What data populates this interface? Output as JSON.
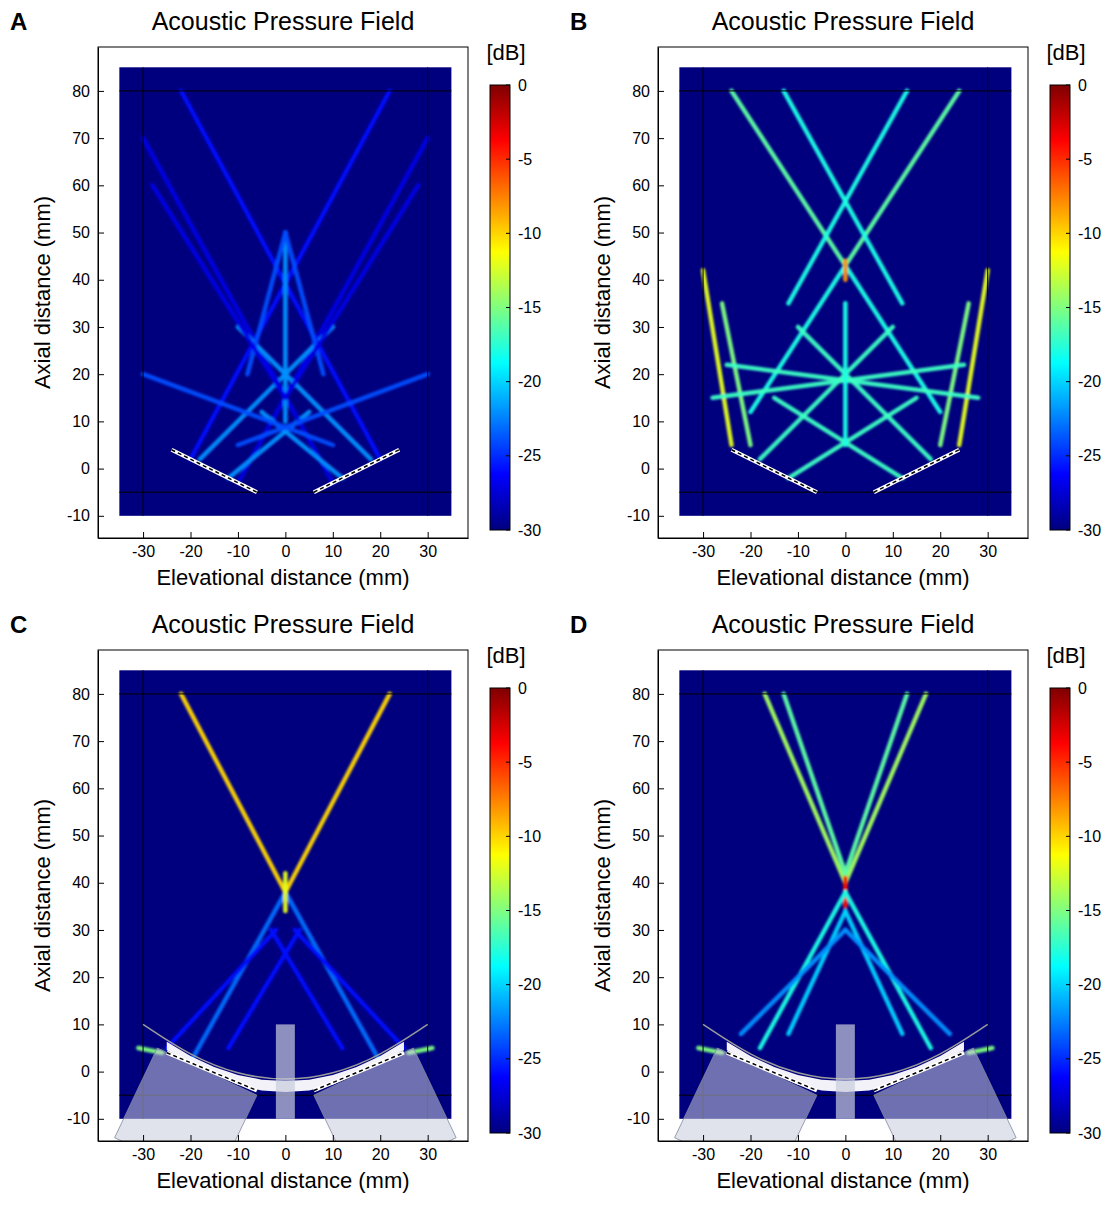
{
  "chart_data": [
    {
      "type": "heatmap",
      "panel": "A",
      "title": "Acoustic Pressure Field",
      "xlabel": "Elevational distance (mm)",
      "ylabel": "Axial distance (mm)",
      "xlim": [
        -39.5,
        38.5
      ],
      "ylim": [
        -14.7,
        89.3
      ],
      "xticks": [
        -30,
        -20,
        -10,
        0,
        10,
        20,
        30
      ],
      "yticks": [
        -10,
        0,
        10,
        20,
        30,
        40,
        50,
        60,
        70,
        80
      ],
      "colorbar": {
        "label": "[dB]",
        "range": [
          -30,
          0
        ],
        "ticks": [
          0,
          -5,
          -10,
          -15,
          -20,
          -25,
          -30
        ]
      },
      "field": {
        "x": [
          -35,
          35
        ],
        "y": [
          -10,
          85
        ]
      },
      "boundary": {
        "x": [
          -30,
          30
        ],
        "y": [
          -5,
          80
        ]
      },
      "beams": [
        {
          "x": [
            -20,
            22
          ],
          "y": [
            2,
            80
          ],
          "level": -26
        },
        {
          "x": [
            -10,
            30
          ],
          "y": [
            -3,
            70
          ],
          "level": -27
        },
        {
          "x": [
            -18,
            10
          ],
          "y": [
            2,
            30
          ],
          "level": -22
        },
        {
          "x": [
            -12,
            5
          ],
          "y": [
            -2,
            12
          ],
          "level": -22
        },
        {
          "x": [
            20,
            -22
          ],
          "y": [
            2,
            80
          ],
          "level": -26
        },
        {
          "x": [
            10,
            -30
          ],
          "y": [
            -3,
            70
          ],
          "level": -27
        },
        {
          "x": [
            18,
            -10
          ],
          "y": [
            2,
            30
          ],
          "level": -22
        },
        {
          "x": [
            12,
            -5
          ],
          "y": [
            -2,
            12
          ],
          "level": -22
        },
        {
          "x": [
            0,
            0
          ],
          "y": [
            10,
            50
          ],
          "level": -22
        },
        {
          "x": [
            -8,
            0
          ],
          "y": [
            20,
            50
          ],
          "level": -24
        },
        {
          "x": [
            8,
            0
          ],
          "y": [
            20,
            50
          ],
          "level": -24
        },
        {
          "x": [
            -30,
            10
          ],
          "y": [
            20,
            5
          ],
          "level": -24
        },
        {
          "x": [
            30,
            -10
          ],
          "y": [
            20,
            5
          ],
          "level": -24
        },
        {
          "x": [
            0,
            -28
          ],
          "y": [
            15,
            60
          ],
          "level": -27
        },
        {
          "x": [
            0,
            28
          ],
          "y": [
            15,
            60
          ],
          "level": -27
        }
      ],
      "transducers": [
        {
          "x": [
            -24,
            -6
          ],
          "y": [
            4,
            -5
          ]
        },
        {
          "x": [
            6,
            24
          ],
          "y": [
            -5,
            4
          ]
        }
      ]
    },
    {
      "type": "heatmap",
      "panel": "B",
      "title": "Acoustic Pressure Field",
      "xlabel": "Elevational distance (mm)",
      "ylabel": "Axial distance (mm)",
      "xlim": [
        -39.5,
        38.5
      ],
      "ylim": [
        -14.7,
        89.3
      ],
      "xticks": [
        -30,
        -20,
        -10,
        0,
        10,
        20,
        30
      ],
      "yticks": [
        -10,
        0,
        10,
        20,
        30,
        40,
        50,
        60,
        70,
        80
      ],
      "colorbar": {
        "label": "[dB]",
        "range": [
          -30,
          0
        ],
        "ticks": [
          0,
          -5,
          -10,
          -15,
          -20,
          -25,
          -30
        ]
      },
      "field": {
        "x": [
          -35,
          35
        ],
        "y": [
          -10,
          85
        ]
      },
      "boundary": {
        "x": [
          -30,
          30
        ],
        "y": [
          -5,
          80
        ]
      },
      "beams": [
        {
          "x": [
            -24,
            0
          ],
          "y": [
            80,
            43
          ],
          "level": -16
        },
        {
          "x": [
            0,
            20
          ],
          "y": [
            43,
            12
          ],
          "level": -18
        },
        {
          "x": [
            24,
            0
          ],
          "y": [
            80,
            43
          ],
          "level": -16
        },
        {
          "x": [
            0,
            -20
          ],
          "y": [
            43,
            12
          ],
          "level": -18
        },
        {
          "x": [
            -13,
            12
          ],
          "y": [
            80,
            35
          ],
          "level": -18
        },
        {
          "x": [
            13,
            -12
          ],
          "y": [
            80,
            35
          ],
          "level": -18
        },
        {
          "x": [
            0,
            0
          ],
          "y": [
            44,
            40
          ],
          "level": -8
        },
        {
          "x": [
            -30,
            -24
          ],
          "y": [
            42,
            5
          ],
          "level": -12
        },
        {
          "x": [
            30,
            24
          ],
          "y": [
            42,
            5
          ],
          "level": -12
        },
        {
          "x": [
            -26,
            -20
          ],
          "y": [
            35,
            5
          ],
          "level": -15
        },
        {
          "x": [
            26,
            20
          ],
          "y": [
            35,
            5
          ],
          "level": -15
        },
        {
          "x": [
            -28,
            25
          ],
          "y": [
            15,
            22
          ],
          "level": -17
        },
        {
          "x": [
            28,
            -25
          ],
          "y": [
            15,
            22
          ],
          "level": -17
        },
        {
          "x": [
            -18,
            10
          ],
          "y": [
            2,
            30
          ],
          "level": -17
        },
        {
          "x": [
            18,
            -10
          ],
          "y": [
            2,
            30
          ],
          "level": -17
        },
        {
          "x": [
            -12,
            15
          ],
          "y": [
            -2,
            15
          ],
          "level": -17
        },
        {
          "x": [
            12,
            -15
          ],
          "y": [
            -2,
            15
          ],
          "level": -17
        },
        {
          "x": [
            0,
            0
          ],
          "y": [
            5,
            35
          ],
          "level": -18
        }
      ],
      "transducers": [
        {
          "x": [
            -24,
            -6
          ],
          "y": [
            4,
            -5
          ]
        },
        {
          "x": [
            6,
            24
          ],
          "y": [
            -5,
            4
          ]
        }
      ]
    },
    {
      "type": "heatmap",
      "panel": "C",
      "title": "Acoustic Pressure Field",
      "xlabel": "Elevational distance (mm)",
      "ylabel": "Axial distance (mm)",
      "xlim": [
        -39.5,
        38.5
      ],
      "ylim": [
        -14.7,
        89.3
      ],
      "xticks": [
        -30,
        -20,
        -10,
        0,
        10,
        20,
        30
      ],
      "yticks": [
        -10,
        0,
        10,
        20,
        30,
        40,
        50,
        60,
        70,
        80
      ],
      "colorbar": {
        "label": "[dB]",
        "range": [
          -30,
          0
        ],
        "ticks": [
          0,
          -5,
          -10,
          -15,
          -20,
          -25,
          -30
        ]
      },
      "field": {
        "x": [
          -35,
          35
        ],
        "y": [
          -10,
          85
        ]
      },
      "boundary": {
        "x": [
          -30,
          30
        ],
        "y": [
          -5,
          80
        ]
      },
      "beams": [
        {
          "x": [
            20,
            0
          ],
          "y": [
            2,
            38
          ],
          "level": -23
        },
        {
          "x": [
            0,
            -22
          ],
          "y": [
            38,
            80
          ],
          "level": -10
        },
        {
          "x": [
            -20,
            0
          ],
          "y": [
            2,
            38
          ],
          "level": -23
        },
        {
          "x": [
            0,
            22
          ],
          "y": [
            38,
            80
          ],
          "level": -10
        },
        {
          "x": [
            0,
            0
          ],
          "y": [
            42,
            34
          ],
          "level": -12
        },
        {
          "x": [
            12,
            -3
          ],
          "y": [
            5,
            30
          ],
          "level": -26
        },
        {
          "x": [
            -12,
            3
          ],
          "y": [
            5,
            30
          ],
          "level": -26
        },
        {
          "x": [
            25,
            2
          ],
          "y": [
            5,
            30
          ],
          "level": -26
        },
        {
          "x": [
            -25,
            -2
          ],
          "y": [
            5,
            30
          ],
          "level": -26
        },
        {
          "x": [
            -31,
            -26
          ],
          "y": [
            5,
            4
          ],
          "level": -15
        },
        {
          "x": [
            31,
            26
          ],
          "y": [
            5,
            4
          ],
          "level": -15
        }
      ],
      "transducers": [
        {
          "x": [
            -25,
            -6
          ],
          "y": [
            4,
            -4
          ]
        },
        {
          "x": [
            6,
            25
          ],
          "y": [
            -4,
            4
          ]
        }
      ],
      "housings": [
        {
          "x": [
            -27,
            -6,
            -15,
            -36
          ],
          "y": [
            5,
            -5,
            -24,
            -14
          ]
        },
        {
          "x": [
            27,
            6,
            15,
            36
          ],
          "y": [
            5,
            -5,
            -24,
            -14
          ]
        }
      ],
      "lens": {
        "x": [
          -25,
          -20,
          -15,
          -10,
          -5,
          0,
          5,
          10,
          15,
          20,
          25,
          25,
          20,
          15,
          10,
          5,
          0,
          -5,
          -10,
          -15,
          -20,
          -25
        ],
        "y": [
          6.3,
          3.3,
          1,
          -0.7,
          -1.7,
          -2,
          -1.7,
          -0.7,
          1,
          3.3,
          6.3,
          4.5,
          2,
          -0.5,
          -2.8,
          -4,
          -4.3,
          -4,
          -2.8,
          -0.5,
          2,
          4.5
        ]
      },
      "lens_arc": {
        "x": [
          -30,
          -20,
          -10,
          0,
          10,
          20,
          30
        ],
        "y": [
          10,
          3.3,
          -0.7,
          -2,
          -0.7,
          3.3,
          10
        ]
      },
      "spacer": {
        "x": [
          -2,
          2
        ],
        "y": [
          -10,
          10
        ]
      }
    },
    {
      "type": "heatmap",
      "panel": "D",
      "title": "Acoustic Pressure Field",
      "xlabel": "Elevational distance (mm)",
      "ylabel": "Axial distance (mm)",
      "xlim": [
        -39.5,
        38.5
      ],
      "ylim": [
        -14.7,
        89.3
      ],
      "xticks": [
        -30,
        -20,
        -10,
        0,
        10,
        20,
        30
      ],
      "yticks": [
        -10,
        0,
        10,
        20,
        30,
        40,
        50,
        60,
        70,
        80
      ],
      "colorbar": {
        "label": "[dB]",
        "range": [
          -30,
          0
        ],
        "ticks": [
          0,
          -5,
          -10,
          -15,
          -20,
          -25,
          -30
        ]
      },
      "field": {
        "x": [
          -35,
          35
        ],
        "y": [
          -10,
          85
        ]
      },
      "boundary": {
        "x": [
          -30,
          30
        ],
        "y": [
          -5,
          80
        ]
      },
      "beams": [
        {
          "x": [
            -17,
            0
          ],
          "y": [
            80,
            40
          ],
          "level": -14
        },
        {
          "x": [
            -13,
            0
          ],
          "y": [
            80,
            42
          ],
          "level": -16
        },
        {
          "x": [
            17,
            0
          ],
          "y": [
            80,
            40
          ],
          "level": -14
        },
        {
          "x": [
            13,
            0
          ],
          "y": [
            80,
            42
          ],
          "level": -16
        },
        {
          "x": [
            0,
            0
          ],
          "y": [
            41,
            35
          ],
          "level": -4
        },
        {
          "x": [
            0,
            18
          ],
          "y": [
            38,
            5
          ],
          "level": -18
        },
        {
          "x": [
            0,
            -18
          ],
          "y": [
            38,
            5
          ],
          "level": -18
        },
        {
          "x": [
            0,
            12
          ],
          "y": [
            34,
            8
          ],
          "level": -20
        },
        {
          "x": [
            0,
            -12
          ],
          "y": [
            34,
            8
          ],
          "level": -20
        },
        {
          "x": [
            0,
            22
          ],
          "y": [
            30,
            8
          ],
          "level": -22
        },
        {
          "x": [
            0,
            -22
          ],
          "y": [
            30,
            8
          ],
          "level": -22
        },
        {
          "x": [
            -31,
            -26
          ],
          "y": [
            5,
            4
          ],
          "level": -15
        },
        {
          "x": [
            31,
            26
          ],
          "y": [
            5,
            4
          ],
          "level": -15
        }
      ],
      "transducers": [
        {
          "x": [
            -25,
            -6
          ],
          "y": [
            4,
            -4
          ]
        },
        {
          "x": [
            6,
            25
          ],
          "y": [
            -4,
            4
          ]
        }
      ],
      "housings": [
        {
          "x": [
            -27,
            -6,
            -15,
            -36
          ],
          "y": [
            5,
            -5,
            -24,
            -14
          ]
        },
        {
          "x": [
            27,
            6,
            15,
            36
          ],
          "y": [
            5,
            -5,
            -24,
            -14
          ]
        }
      ],
      "lens": {
        "x": [
          -25,
          -20,
          -15,
          -10,
          -5,
          0,
          5,
          10,
          15,
          20,
          25,
          25,
          20,
          15,
          10,
          5,
          0,
          -5,
          -10,
          -15,
          -20,
          -25
        ],
        "y": [
          6.3,
          3.3,
          1,
          -0.7,
          -1.7,
          -2,
          -1.7,
          -0.7,
          1,
          3.3,
          6.3,
          4.5,
          2,
          -0.5,
          -2.8,
          -4,
          -4.3,
          -4,
          -2.8,
          -0.5,
          2,
          4.5
        ]
      },
      "lens_arc": {
        "x": [
          -30,
          -20,
          -10,
          0,
          10,
          20,
          30
        ],
        "y": [
          10,
          3.3,
          -0.7,
          -2,
          -0.7,
          3.3,
          10
        ]
      },
      "spacer": {
        "x": [
          -2,
          2
        ],
        "y": [
          -10,
          10
        ]
      }
    }
  ]
}
